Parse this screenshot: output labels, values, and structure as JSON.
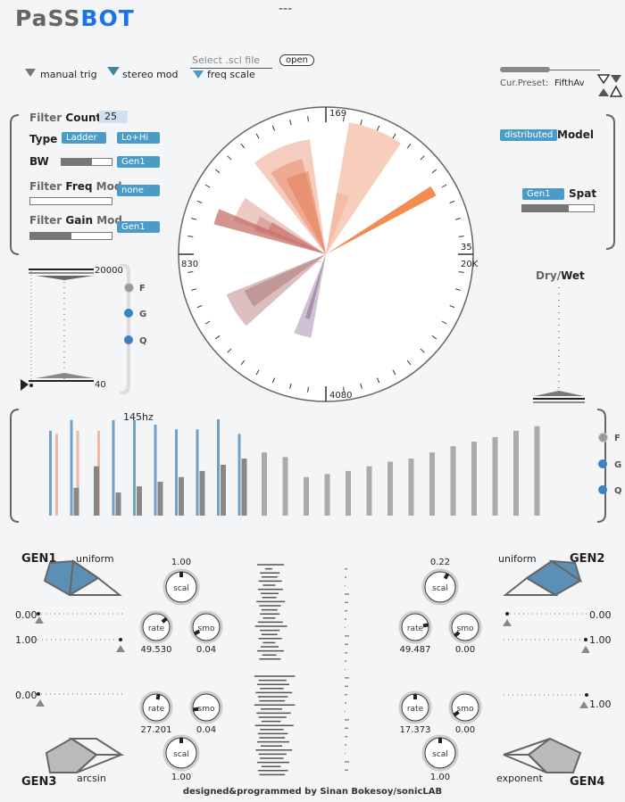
{
  "app": {
    "title_pa": "Pa",
    "title_ss": "SS",
    "title_bot": "BOT",
    "center_mark": "---",
    "footer": "designed&programmed by Sinan Bokesoy/sonicLAB"
  },
  "top": {
    "manual_trig": "manual trig",
    "stereo_mod": "stereo mod",
    "freq_scale": "freq scale",
    "scl_placeholder": "Select .scl file",
    "open": "open",
    "preset_label": "Cur.Preset:",
    "preset_value": "FifthAv"
  },
  "filter": {
    "count_a": "Filter",
    "count_b": "Count",
    "count_value": "25",
    "type_label": "Type",
    "type_a": "Ladder",
    "type_b": "Lo+Hi",
    "bw_label": "BW",
    "bw_gen": "Gen1",
    "bw_level": 0.6,
    "freqmod_a": "Filter",
    "freqmod_b": "Freq",
    "freqmod_c": "Mod",
    "freqmod_value": "none",
    "freqmod_level": 0,
    "gainmod_a": "Filter",
    "gainmod_b": "Gain",
    "gainmod_c": "Mod",
    "gainmod_value": "Gen1",
    "gainmod_level": 0.5
  },
  "model": {
    "chip": "distributed",
    "label": "Model",
    "spat_chip": "Gen1",
    "spat_label": "Spat",
    "spat_level": 0.65
  },
  "radar": {
    "top": "169",
    "left": "830",
    "right_top": "35",
    "right": "20K",
    "bottom": "4080"
  },
  "range": {
    "max": "20000",
    "min": "40",
    "f": "F",
    "g": "G",
    "q": "Q"
  },
  "drywet": {
    "a": "Dry",
    "sep": "/",
    "b": "Wet"
  },
  "spectrum": {
    "freq_label": "145hz",
    "f": "F",
    "g": "G",
    "q": "Q",
    "bars": [
      {
        "b": 0.55,
        "p": 0.53,
        "g": 0
      },
      {
        "b": 0.62,
        "p": 0.55,
        "g": 0.18
      },
      {
        "b": 0,
        "p": 0.55,
        "g": 0.32
      },
      {
        "b": 0.62,
        "p": 0,
        "g": 0.15
      },
      {
        "b": 0.62,
        "p": 0,
        "g": 0.19
      },
      {
        "b": 0.59,
        "p": 0,
        "g": 0.22
      },
      {
        "b": 0.56,
        "p": 0,
        "g": 0.25
      },
      {
        "b": 0.56,
        "p": 0,
        "g": 0.29
      },
      {
        "b": 0.67,
        "p": 0,
        "g": 0.33
      },
      {
        "b": 0.53,
        "p": 0,
        "g": 0.37
      },
      {
        "b": 0,
        "p": 0,
        "g": 0.41
      },
      {
        "b": 0,
        "p": 0,
        "g": 0.38
      },
      {
        "b": 0,
        "p": 0,
        "g": 0.25
      },
      {
        "b": 0,
        "p": 0,
        "g": 0.27
      },
      {
        "b": 0,
        "p": 0,
        "g": 0.29
      },
      {
        "b": 0,
        "p": 0,
        "g": 0.32
      },
      {
        "b": 0,
        "p": 0,
        "g": 0.35
      },
      {
        "b": 0,
        "p": 0,
        "g": 0.37
      },
      {
        "b": 0,
        "p": 0,
        "g": 0.41
      },
      {
        "b": 0,
        "p": 0,
        "g": 0.45
      },
      {
        "b": 0,
        "p": 0,
        "g": 0.48
      },
      {
        "b": 0,
        "p": 0,
        "g": 0.51
      },
      {
        "b": 0,
        "p": 0,
        "g": 0.55
      },
      {
        "b": 0,
        "p": 0,
        "g": 0.58
      },
      {
        "b": 0,
        "p": 0,
        "g": 0.59
      }
    ]
  },
  "gen1": {
    "title": "GEN1",
    "dist": "uniform",
    "v1": "0.00",
    "v2": "1.00",
    "scal": "1.00",
    "rate": "49.530",
    "smo": "0.04"
  },
  "gen2": {
    "title": "GEN2",
    "dist": "uniform",
    "v1": "0.00",
    "v2": "1.00",
    "scal": "0.22",
    "rate": "49.487",
    "smo": "0.00"
  },
  "gen3": {
    "title": "GEN3",
    "dist": "arcsin",
    "v1": "0.00",
    "scal": "1.00",
    "rate": "27.201",
    "smo": "0.04"
  },
  "gen4": {
    "title": "GEN4",
    "dist": "exponent",
    "v1": "1.00",
    "scal": "1.00",
    "rate": "17.373",
    "smo": "0.00"
  },
  "knob_words": {
    "scal": "scal",
    "rate": "rate",
    "smo": "smo"
  }
}
